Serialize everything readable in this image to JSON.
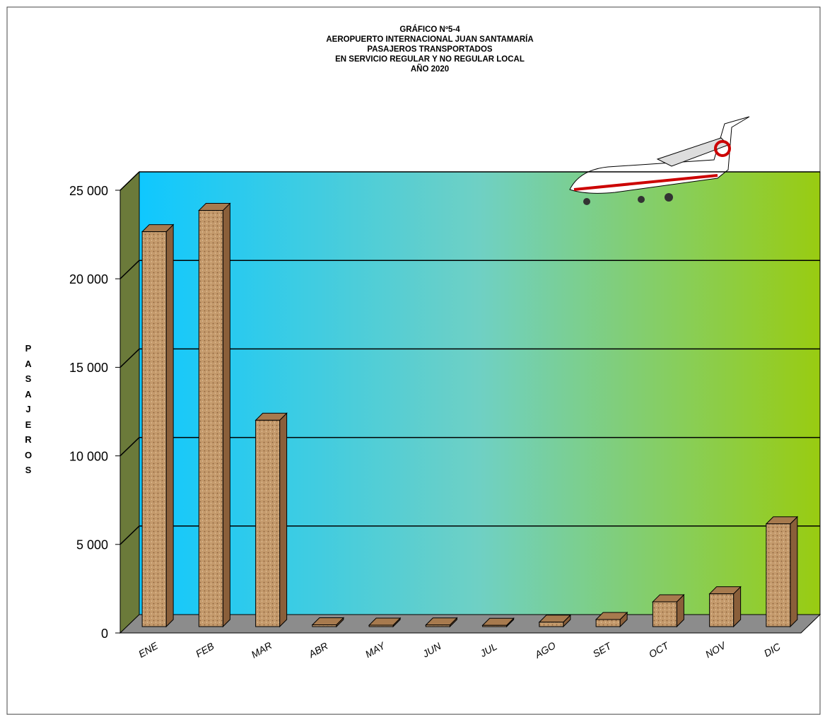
{
  "chart_data": {
    "type": "bar3d",
    "title_lines": [
      "GRÁFICO Nº5-4",
      "AEROPUERTO INTERNACIONAL JUAN SANTAMARÍA",
      "PASAJEROS TRANSPORTADOS",
      "EN SERVICIO REGULAR Y NO REGULAR LOCAL",
      "AÑO 2020"
    ],
    "y_label": "PASAJEROS",
    "categories": [
      "ENE",
      "FEB",
      "MAR",
      "ABR",
      "MAY",
      "JUN",
      "JUL",
      "AGO",
      "SET",
      "OCT",
      "NOV",
      "DIC"
    ],
    "values": [
      22300,
      23500,
      11650,
      100,
      80,
      90,
      70,
      250,
      400,
      1400,
      1850,
      5800
    ],
    "color": "#c49a6c",
    "ylim": [
      0,
      25000
    ],
    "yticks": [
      {
        "value": 0,
        "label": "0"
      },
      {
        "value": 5000,
        "label": "5 000"
      },
      {
        "value": 10000,
        "label": "10 000"
      },
      {
        "value": 15000,
        "label": "15 000"
      },
      {
        "value": 20000,
        "label": "20 000"
      },
      {
        "value": 25000,
        "label": "25 000"
      }
    ],
    "grid": true
  }
}
